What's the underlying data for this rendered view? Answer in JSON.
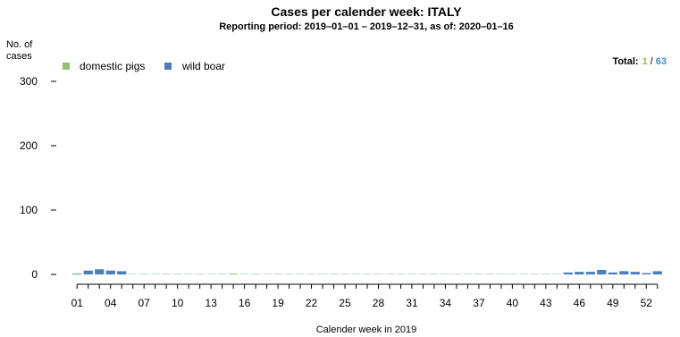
{
  "chart_data": {
    "type": "bar",
    "title": "Cases per calender week: ITALY",
    "subtitle": "Reporting period: 2019–01–01 – 2019–12–31, as of: 2020–01–16",
    "ylabel_line1": "No. of",
    "ylabel_line2": "cases",
    "xlabel": "Calender week in 2019",
    "ylim": [
      0,
      300
    ],
    "yticks": [
      "0",
      "100",
      "200",
      "300"
    ],
    "ytick_values": [
      0,
      100,
      200,
      300
    ],
    "xtick_labels": [
      "01",
      "04",
      "07",
      "10",
      "13",
      "16",
      "19",
      "22",
      "25",
      "28",
      "31",
      "34",
      "37",
      "40",
      "43",
      "46",
      "49",
      "52"
    ],
    "xtick_weeks": [
      1,
      4,
      7,
      10,
      13,
      16,
      19,
      22,
      25,
      28,
      31,
      34,
      37,
      40,
      43,
      46,
      49,
      52
    ],
    "weeks": [
      1,
      2,
      3,
      4,
      5,
      6,
      7,
      8,
      9,
      10,
      11,
      12,
      13,
      14,
      15,
      16,
      17,
      18,
      19,
      20,
      21,
      22,
      23,
      24,
      25,
      26,
      27,
      28,
      29,
      30,
      31,
      32,
      33,
      34,
      35,
      36,
      37,
      38,
      39,
      40,
      41,
      42,
      43,
      44,
      45,
      46,
      47,
      48,
      49,
      50,
      51,
      52,
      53
    ],
    "series": [
      {
        "name": "domestic pigs",
        "color": "#8dc26f",
        "values": [
          0,
          0,
          0,
          0,
          0,
          0,
          0,
          0,
          0,
          0,
          0,
          0,
          0,
          0,
          1,
          0,
          0,
          0,
          0,
          0,
          0,
          0,
          0,
          0,
          0,
          0,
          0,
          0,
          0,
          0,
          0,
          0,
          0,
          0,
          0,
          0,
          0,
          0,
          0,
          0,
          0,
          0,
          0,
          0,
          0,
          0,
          0,
          0,
          0,
          0,
          0,
          0,
          0
        ]
      },
      {
        "name": "wild boar",
        "color": "#4a7ebb",
        "values": [
          1,
          6,
          8,
          6,
          5,
          0,
          0,
          0,
          0,
          0,
          0,
          0,
          0,
          0,
          0,
          0,
          0,
          0,
          0,
          0,
          0,
          0,
          0,
          0,
          0,
          0,
          0,
          0,
          0,
          0,
          0,
          0,
          0,
          0,
          0,
          0,
          0,
          0,
          0,
          0,
          0,
          0,
          0,
          0,
          3,
          4,
          4,
          7,
          3,
          5,
          4,
          2,
          5
        ]
      }
    ],
    "total_label": "Total:",
    "total_domestic": "1",
    "total_sep": "/",
    "total_wild": "63",
    "total_domestic_color": "#8dc63f",
    "total_wild_color": "#3a8fd6",
    "grid": false,
    "legend_position": "top-left"
  }
}
